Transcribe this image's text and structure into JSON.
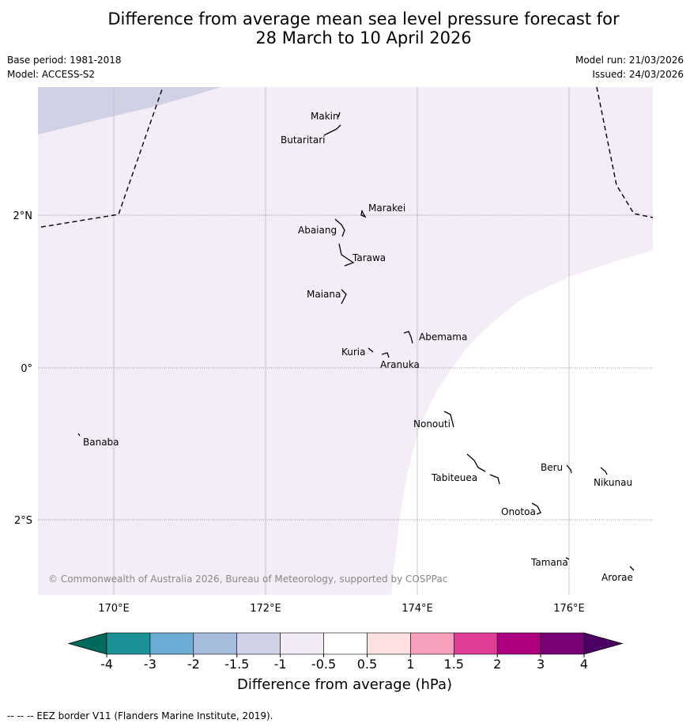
{
  "title": {
    "line1": "Difference from average mean sea level pressure forecast for",
    "line2": "28 March to 10 April 2026"
  },
  "meta_left": {
    "base_period": "Base period: 1981-2018",
    "model": "Model: ACCESS-S2"
  },
  "meta_right": {
    "model_run": "Model run: 21/03/2026",
    "issued": "Issued: 24/03/2026"
  },
  "map": {
    "lat_labels": [
      "2°N",
      "0°",
      "2°S"
    ],
    "lon_labels": [
      "170°E",
      "172°E",
      "174°E",
      "176°E"
    ],
    "copyright": "© Commonwealth of Australia 2026, Bureau of Meteorology, supported by COSPPac",
    "places": [
      {
        "name": "Makin"
      },
      {
        "name": "Butaritari"
      },
      {
        "name": "Marakei"
      },
      {
        "name": "Abaiang"
      },
      {
        "name": "Tarawa"
      },
      {
        "name": "Maiana"
      },
      {
        "name": "Abemama"
      },
      {
        "name": "Kuria"
      },
      {
        "name": "Aranuka"
      },
      {
        "name": "Nonouti"
      },
      {
        "name": "Banaba"
      },
      {
        "name": "Beru"
      },
      {
        "name": "Tabiteuea"
      },
      {
        "name": "Nikunau"
      },
      {
        "name": "Onotoa"
      },
      {
        "name": "Tamana"
      },
      {
        "name": "Arorae"
      }
    ]
  },
  "colorbar": {
    "label": "Difference from average (hPa)",
    "ticks": [
      "-4",
      "-3",
      "-2",
      "-1.5",
      "-1",
      "-0.5",
      "0.5",
      "1",
      "1.5",
      "2",
      "3",
      "4"
    ],
    "colors": [
      "#1d9198",
      "#6aacd3",
      "#a6bcdc",
      "#d0d2e6",
      "#f2ebf5",
      "#ffffff",
      "#fde0e0",
      "#f7a0bc",
      "#df3d96",
      "#ac0080",
      "#7a0077"
    ],
    "under_color": "#006b5c",
    "over_color": "#4c0064"
  },
  "footer": "--  --  -- EEZ border V11 (Flanders Marine Institute, 2019)."
}
